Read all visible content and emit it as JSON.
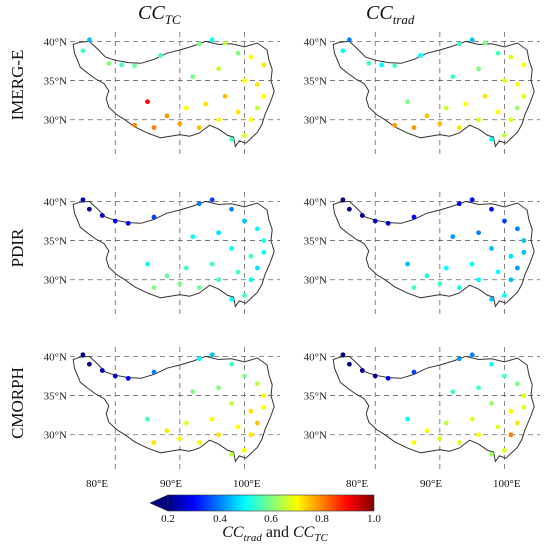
{
  "columns": [
    {
      "main": "CC",
      "sub": "TC"
    },
    {
      "main": "CC",
      "sub": "trad"
    }
  ],
  "rows": [
    "IMERG-E",
    "PDIR",
    "CMORPH"
  ],
  "lat_ticks": [
    "40°N",
    "35°N",
    "30°N"
  ],
  "lon_ticks": [
    "80°E",
    "90°E",
    "100°E"
  ],
  "colorbar": {
    "ticks": [
      "0.2",
      "0.4",
      "0.6",
      "0.8",
      "1.0"
    ],
    "title_a_main": "CC",
    "title_a_sub": "trad",
    "title_join": " and ",
    "title_b_main": "CC",
    "title_b_sub": "TC",
    "colors": [
      "#00007f",
      "#0000ff",
      "#007fff",
      "#00ffff",
      "#7fff7f",
      "#ffff00",
      "#ff7f00",
      "#ff0000",
      "#7f0000"
    ]
  },
  "stations": {
    "IMERG-E": {
      "CC_TC": [
        {
          "lon": 76,
          "lat": 40.2,
          "v": 0.45
        },
        {
          "lon": 75,
          "lat": 38.8,
          "v": 0.55
        },
        {
          "lon": 79,
          "lat": 37.2,
          "v": 0.6
        },
        {
          "lon": 81,
          "lat": 37.0,
          "v": 0.55
        },
        {
          "lon": 83,
          "lat": 36.9,
          "v": 0.58
        },
        {
          "lon": 87,
          "lat": 38.2,
          "v": 0.55
        },
        {
          "lon": 93,
          "lat": 39.7,
          "v": 0.6
        },
        {
          "lon": 95,
          "lat": 40.2,
          "v": 0.5
        },
        {
          "lon": 97,
          "lat": 39.8,
          "v": 0.65
        },
        {
          "lon": 99,
          "lat": 38.5,
          "v": 0.6
        },
        {
          "lon": 101,
          "lat": 38.0,
          "v": 0.7
        },
        {
          "lon": 103,
          "lat": 37.0,
          "v": 0.72
        },
        {
          "lon": 96,
          "lat": 36.5,
          "v": 0.65
        },
        {
          "lon": 92,
          "lat": 35.5,
          "v": 0.6
        },
        {
          "lon": 100,
          "lat": 35.0,
          "v": 0.7
        },
        {
          "lon": 102,
          "lat": 34.5,
          "v": 0.72
        },
        {
          "lon": 97,
          "lat": 33.0,
          "v": 0.75
        },
        {
          "lon": 94,
          "lat": 32.0,
          "v": 0.72
        },
        {
          "lon": 91,
          "lat": 31.5,
          "v": 0.7
        },
        {
          "lon": 88,
          "lat": 30.5,
          "v": 0.78
        },
        {
          "lon": 85,
          "lat": 32.3,
          "v": 0.9
        },
        {
          "lon": 86,
          "lat": 29.0,
          "v": 0.8
        },
        {
          "lon": 90,
          "lat": 29.5,
          "v": 0.78
        },
        {
          "lon": 93,
          "lat": 29.0,
          "v": 0.75
        },
        {
          "lon": 96,
          "lat": 30.0,
          "v": 0.7
        },
        {
          "lon": 99,
          "lat": 31.0,
          "v": 0.72
        },
        {
          "lon": 101,
          "lat": 30.0,
          "v": 0.7
        },
        {
          "lon": 102,
          "lat": 31.5,
          "v": 0.65
        },
        {
          "lon": 103,
          "lat": 33.0,
          "v": 0.7
        },
        {
          "lon": 100,
          "lat": 28.0,
          "v": 0.68
        },
        {
          "lon": 98,
          "lat": 27.5,
          "v": 0.55
        },
        {
          "lon": 83,
          "lat": 29.3,
          "v": 0.8
        }
      ],
      "CC_trad": [
        {
          "lon": 76,
          "lat": 40.2,
          "v": 0.4
        },
        {
          "lon": 75,
          "lat": 38.8,
          "v": 0.5
        },
        {
          "lon": 79,
          "lat": 37.2,
          "v": 0.55
        },
        {
          "lon": 81,
          "lat": 37.0,
          "v": 0.5
        },
        {
          "lon": 83,
          "lat": 36.9,
          "v": 0.55
        },
        {
          "lon": 87,
          "lat": 38.2,
          "v": 0.5
        },
        {
          "lon": 93,
          "lat": 39.7,
          "v": 0.55
        },
        {
          "lon": 95,
          "lat": 40.2,
          "v": 0.45
        },
        {
          "lon": 97,
          "lat": 39.8,
          "v": 0.6
        },
        {
          "lon": 99,
          "lat": 38.5,
          "v": 0.55
        },
        {
          "lon": 101,
          "lat": 38.0,
          "v": 0.68
        },
        {
          "lon": 103,
          "lat": 37.0,
          "v": 0.7
        },
        {
          "lon": 96,
          "lat": 36.5,
          "v": 0.6
        },
        {
          "lon": 92,
          "lat": 35.5,
          "v": 0.55
        },
        {
          "lon": 100,
          "lat": 35.0,
          "v": 0.68
        },
        {
          "lon": 102,
          "lat": 34.5,
          "v": 0.7
        },
        {
          "lon": 97,
          "lat": 33.0,
          "v": 0.72
        },
        {
          "lon": 94,
          "lat": 32.0,
          "v": 0.7
        },
        {
          "lon": 91,
          "lat": 31.5,
          "v": 0.66
        },
        {
          "lon": 88,
          "lat": 30.5,
          "v": 0.75
        },
        {
          "lon": 85,
          "lat": 32.3,
          "v": 0.6
        },
        {
          "lon": 86,
          "lat": 29.0,
          "v": 0.78
        },
        {
          "lon": 90,
          "lat": 29.5,
          "v": 0.75
        },
        {
          "lon": 93,
          "lat": 29.0,
          "v": 0.72
        },
        {
          "lon": 96,
          "lat": 30.0,
          "v": 0.68
        },
        {
          "lon": 99,
          "lat": 31.0,
          "v": 0.7
        },
        {
          "lon": 101,
          "lat": 30.0,
          "v": 0.68
        },
        {
          "lon": 102,
          "lat": 31.5,
          "v": 0.62
        },
        {
          "lon": 103,
          "lat": 33.0,
          "v": 0.68
        },
        {
          "lon": 100,
          "lat": 28.0,
          "v": 0.65
        },
        {
          "lon": 98,
          "lat": 27.5,
          "v": 0.5
        },
        {
          "lon": 83,
          "lat": 29.3,
          "v": 0.78
        }
      ]
    },
    "PDIR": {
      "CC_TC": [
        {
          "lon": 75,
          "lat": 40.2,
          "v": 0.25
        },
        {
          "lon": 76,
          "lat": 39.0,
          "v": 0.22
        },
        {
          "lon": 78,
          "lat": 38.2,
          "v": 0.25
        },
        {
          "lon": 80,
          "lat": 37.5,
          "v": 0.3
        },
        {
          "lon": 82,
          "lat": 37.2,
          "v": 0.28
        },
        {
          "lon": 86,
          "lat": 38.0,
          "v": 0.35
        },
        {
          "lon": 93,
          "lat": 39.7,
          "v": 0.4
        },
        {
          "lon": 95,
          "lat": 40.2,
          "v": 0.35
        },
        {
          "lon": 98,
          "lat": 39.0,
          "v": 0.4
        },
        {
          "lon": 100,
          "lat": 37.5,
          "v": 0.45
        },
        {
          "lon": 102,
          "lat": 36.5,
          "v": 0.5
        },
        {
          "lon": 103,
          "lat": 35.0,
          "v": 0.52
        },
        {
          "lon": 96,
          "lat": 36.0,
          "v": 0.48
        },
        {
          "lon": 92,
          "lat": 35.5,
          "v": 0.5
        },
        {
          "lon": 98,
          "lat": 34.0,
          "v": 0.5
        },
        {
          "lon": 101,
          "lat": 33.0,
          "v": 0.55
        },
        {
          "lon": 95,
          "lat": 32.0,
          "v": 0.55
        },
        {
          "lon": 91,
          "lat": 31.5,
          "v": 0.55
        },
        {
          "lon": 88,
          "lat": 30.5,
          "v": 0.58
        },
        {
          "lon": 85,
          "lat": 32.0,
          "v": 0.5
        },
        {
          "lon": 86,
          "lat": 29.0,
          "v": 0.6
        },
        {
          "lon": 90,
          "lat": 29.5,
          "v": 0.6
        },
        {
          "lon": 93,
          "lat": 29.0,
          "v": 0.58
        },
        {
          "lon": 96,
          "lat": 30.0,
          "v": 0.55
        },
        {
          "lon": 99,
          "lat": 31.0,
          "v": 0.55
        },
        {
          "lon": 101,
          "lat": 30.0,
          "v": 0.5
        },
        {
          "lon": 102,
          "lat": 31.5,
          "v": 0.48
        },
        {
          "lon": 103,
          "lat": 33.5,
          "v": 0.5
        },
        {
          "lon": 100,
          "lat": 28.0,
          "v": 0.55
        },
        {
          "lon": 98,
          "lat": 27.5,
          "v": 0.5
        }
      ],
      "CC_trad": [
        {
          "lon": 75,
          "lat": 40.2,
          "v": 0.2
        },
        {
          "lon": 76,
          "lat": 39.0,
          "v": 0.2
        },
        {
          "lon": 78,
          "lat": 38.2,
          "v": 0.22
        },
        {
          "lon": 80,
          "lat": 37.5,
          "v": 0.25
        },
        {
          "lon": 82,
          "lat": 37.2,
          "v": 0.25
        },
        {
          "lon": 86,
          "lat": 38.0,
          "v": 0.3
        },
        {
          "lon": 93,
          "lat": 39.7,
          "v": 0.3
        },
        {
          "lon": 95,
          "lat": 40.2,
          "v": 0.28
        },
        {
          "lon": 98,
          "lat": 39.0,
          "v": 0.3
        },
        {
          "lon": 100,
          "lat": 37.5,
          "v": 0.35
        },
        {
          "lon": 102,
          "lat": 36.5,
          "v": 0.4
        },
        {
          "lon": 103,
          "lat": 35.0,
          "v": 0.45
        },
        {
          "lon": 96,
          "lat": 36.0,
          "v": 0.4
        },
        {
          "lon": 92,
          "lat": 35.5,
          "v": 0.42
        },
        {
          "lon": 98,
          "lat": 34.0,
          "v": 0.45
        },
        {
          "lon": 101,
          "lat": 33.0,
          "v": 0.48
        },
        {
          "lon": 95,
          "lat": 32.0,
          "v": 0.5
        },
        {
          "lon": 91,
          "lat": 31.5,
          "v": 0.5
        },
        {
          "lon": 88,
          "lat": 30.5,
          "v": 0.52
        },
        {
          "lon": 85,
          "lat": 32.0,
          "v": 0.45
        },
        {
          "lon": 86,
          "lat": 29.0,
          "v": 0.55
        },
        {
          "lon": 90,
          "lat": 29.5,
          "v": 0.55
        },
        {
          "lon": 93,
          "lat": 29.0,
          "v": 0.52
        },
        {
          "lon": 96,
          "lat": 30.0,
          "v": 0.5
        },
        {
          "lon": 99,
          "lat": 31.0,
          "v": 0.5
        },
        {
          "lon": 101,
          "lat": 30.0,
          "v": 0.45
        },
        {
          "lon": 102,
          "lat": 31.5,
          "v": 0.42
        },
        {
          "lon": 103,
          "lat": 33.5,
          "v": 0.45
        },
        {
          "lon": 100,
          "lat": 28.0,
          "v": 0.5
        },
        {
          "lon": 98,
          "lat": 27.5,
          "v": 0.45
        }
      ]
    },
    "CMORPH": {
      "CC_TC": [
        {
          "lon": 75,
          "lat": 40.2,
          "v": 0.22
        },
        {
          "lon": 76,
          "lat": 39.0,
          "v": 0.2
        },
        {
          "lon": 78,
          "lat": 38.2,
          "v": 0.25
        },
        {
          "lon": 80,
          "lat": 37.5,
          "v": 0.25
        },
        {
          "lon": 82,
          "lat": 37.2,
          "v": 0.3
        },
        {
          "lon": 86,
          "lat": 38.0,
          "v": 0.4
        },
        {
          "lon": 93,
          "lat": 39.7,
          "v": 0.5
        },
        {
          "lon": 95,
          "lat": 40.2,
          "v": 0.45
        },
        {
          "lon": 98,
          "lat": 39.0,
          "v": 0.55
        },
        {
          "lon": 100,
          "lat": 37.5,
          "v": 0.6
        },
        {
          "lon": 102,
          "lat": 36.5,
          "v": 0.65
        },
        {
          "lon": 103,
          "lat": 35.0,
          "v": 0.7
        },
        {
          "lon": 96,
          "lat": 36.0,
          "v": 0.6
        },
        {
          "lon": 92,
          "lat": 35.5,
          "v": 0.6
        },
        {
          "lon": 98,
          "lat": 34.0,
          "v": 0.65
        },
        {
          "lon": 101,
          "lat": 33.0,
          "v": 0.72
        },
        {
          "lon": 95,
          "lat": 32.0,
          "v": 0.7
        },
        {
          "lon": 91,
          "lat": 31.5,
          "v": 0.68
        },
        {
          "lon": 88,
          "lat": 30.5,
          "v": 0.72
        },
        {
          "lon": 85,
          "lat": 32.0,
          "v": 0.55
        },
        {
          "lon": 86,
          "lat": 29.0,
          "v": 0.72
        },
        {
          "lon": 90,
          "lat": 29.5,
          "v": 0.7
        },
        {
          "lon": 93,
          "lat": 29.0,
          "v": 0.7
        },
        {
          "lon": 96,
          "lat": 30.0,
          "v": 0.72
        },
        {
          "lon": 99,
          "lat": 31.0,
          "v": 0.7
        },
        {
          "lon": 101,
          "lat": 30.0,
          "v": 0.72
        },
        {
          "lon": 102,
          "lat": 31.5,
          "v": 0.75
        },
        {
          "lon": 103,
          "lat": 33.5,
          "v": 0.7
        },
        {
          "lon": 100,
          "lat": 28.0,
          "v": 0.7
        },
        {
          "lon": 98,
          "lat": 27.5,
          "v": 0.65
        }
      ],
      "CC_trad": [
        {
          "lon": 75,
          "lat": 40.2,
          "v": 0.2
        },
        {
          "lon": 76,
          "lat": 39.0,
          "v": 0.2
        },
        {
          "lon": 78,
          "lat": 38.2,
          "v": 0.22
        },
        {
          "lon": 80,
          "lat": 37.5,
          "v": 0.22
        },
        {
          "lon": 82,
          "lat": 37.2,
          "v": 0.28
        },
        {
          "lon": 86,
          "lat": 38.0,
          "v": 0.35
        },
        {
          "lon": 93,
          "lat": 39.7,
          "v": 0.42
        },
        {
          "lon": 95,
          "lat": 40.2,
          "v": 0.4
        },
        {
          "lon": 98,
          "lat": 39.0,
          "v": 0.5
        },
        {
          "lon": 100,
          "lat": 37.5,
          "v": 0.55
        },
        {
          "lon": 102,
          "lat": 36.5,
          "v": 0.6
        },
        {
          "lon": 103,
          "lat": 35.0,
          "v": 0.68
        },
        {
          "lon": 96,
          "lat": 36.0,
          "v": 0.55
        },
        {
          "lon": 92,
          "lat": 35.5,
          "v": 0.55
        },
        {
          "lon": 98,
          "lat": 34.0,
          "v": 0.62
        },
        {
          "lon": 101,
          "lat": 33.0,
          "v": 0.7
        },
        {
          "lon": 95,
          "lat": 32.0,
          "v": 0.68
        },
        {
          "lon": 91,
          "lat": 31.5,
          "v": 0.65
        },
        {
          "lon": 88,
          "lat": 30.5,
          "v": 0.7
        },
        {
          "lon": 85,
          "lat": 32.0,
          "v": 0.5
        },
        {
          "lon": 86,
          "lat": 29.0,
          "v": 0.7
        },
        {
          "lon": 90,
          "lat": 29.5,
          "v": 0.68
        },
        {
          "lon": 93,
          "lat": 29.0,
          "v": 0.68
        },
        {
          "lon": 96,
          "lat": 30.0,
          "v": 0.7
        },
        {
          "lon": 99,
          "lat": 31.0,
          "v": 0.68
        },
        {
          "lon": 101,
          "lat": 30.0,
          "v": 0.8
        },
        {
          "lon": 102,
          "lat": 31.5,
          "v": 0.72
        },
        {
          "lon": 103,
          "lat": 33.5,
          "v": 0.68
        },
        {
          "lon": 100,
          "lat": 28.0,
          "v": 0.68
        },
        {
          "lon": 98,
          "lat": 27.5,
          "v": 0.62
        }
      ]
    }
  }
}
